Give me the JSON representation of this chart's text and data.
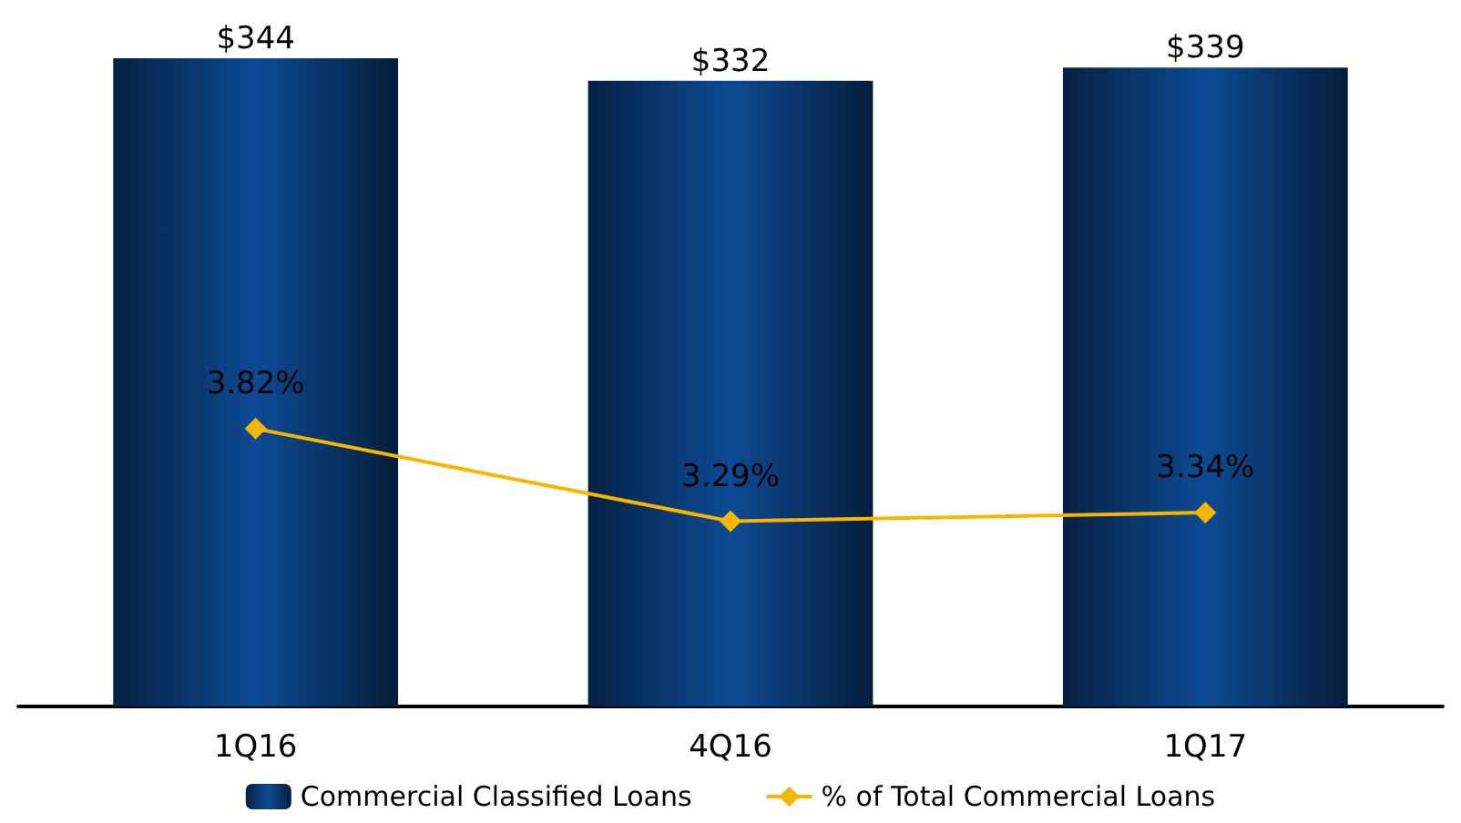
{
  "chart_data": {
    "type": "bar",
    "categories": [
      "1Q16",
      "4Q16",
      "1Q17"
    ],
    "series": [
      {
        "name": "Commercial Classified Loans",
        "color": "#0d4a94",
        "values": [
          344,
          332,
          339
        ],
        "value_labels": [
          "$344",
          "$332",
          "$339"
        ]
      },
      {
        "name": "% of Total Commercial Loans",
        "type": "line",
        "axis": "y2",
        "color": "#f7b500",
        "values": [
          3.82,
          3.29,
          3.34
        ],
        "value_labels": [
          "3.82%",
          "3.29%",
          "3.34%"
        ],
        "marker": "diamond"
      }
    ],
    "tick_labels": "x",
    "grid": false,
    "legend": "bottom"
  }
}
